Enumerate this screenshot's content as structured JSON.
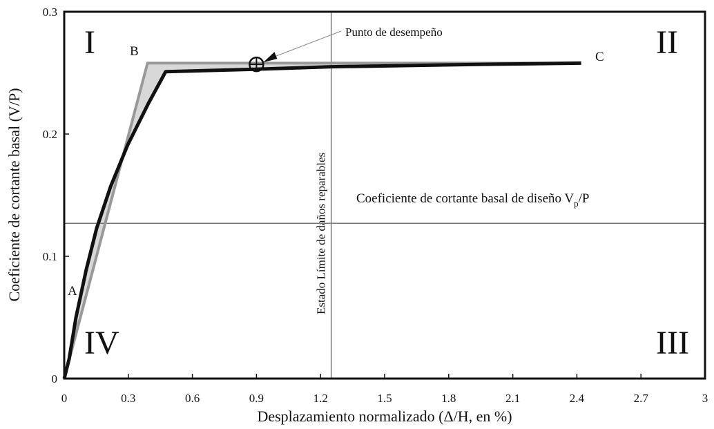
{
  "chart_data": {
    "type": "line",
    "xlabel": "Desplazamiento normalizado (Δ/H, en %)",
    "ylabel": "Coeficiente de cortante basal (V/P)",
    "xlim": [
      0,
      3
    ],
    "ylim": [
      0,
      0.3
    ],
    "xticks": [
      0,
      0.3,
      0.6,
      0.9,
      1.2,
      1.5,
      1.8,
      2.1,
      2.4,
      2.7,
      3
    ],
    "yticks": [
      0,
      0.1,
      0.2,
      0.3
    ],
    "series": [
      {
        "color": "#999999",
        "x": [
          0,
          0.39,
          2.42
        ],
        "values": [
          0,
          0.258,
          0.258
        ]
      },
      {
        "color": "#111111",
        "x": [
          0,
          0.023,
          0.055,
          0.103,
          0.152,
          0.217,
          0.297,
          0.394,
          0.475,
          0.896,
          1.25,
          1.96,
          2.42
        ],
        "values": [
          0,
          0.016,
          0.05,
          0.089,
          0.123,
          0.157,
          0.191,
          0.225,
          0.251,
          0.253,
          0.255,
          0.257,
          0.258
        ]
      }
    ],
    "point_labels": [
      "A",
      "B",
      "C"
    ],
    "quadrant_labels": [
      "I",
      "II",
      "III",
      "IV"
    ],
    "performance_point": {
      "label": "Punto de desempeño",
      "x": 0.9,
      "y": 0.257
    },
    "vertical_line": {
      "x": 1.25,
      "label": "Estado Límite de daños reparables"
    },
    "horizontal_line": {
      "y": 0.127,
      "label": {
        "text": "Coeficiente de cortante basal de diseño V",
        "sub": "p",
        "tail": "/P"
      }
    }
  }
}
